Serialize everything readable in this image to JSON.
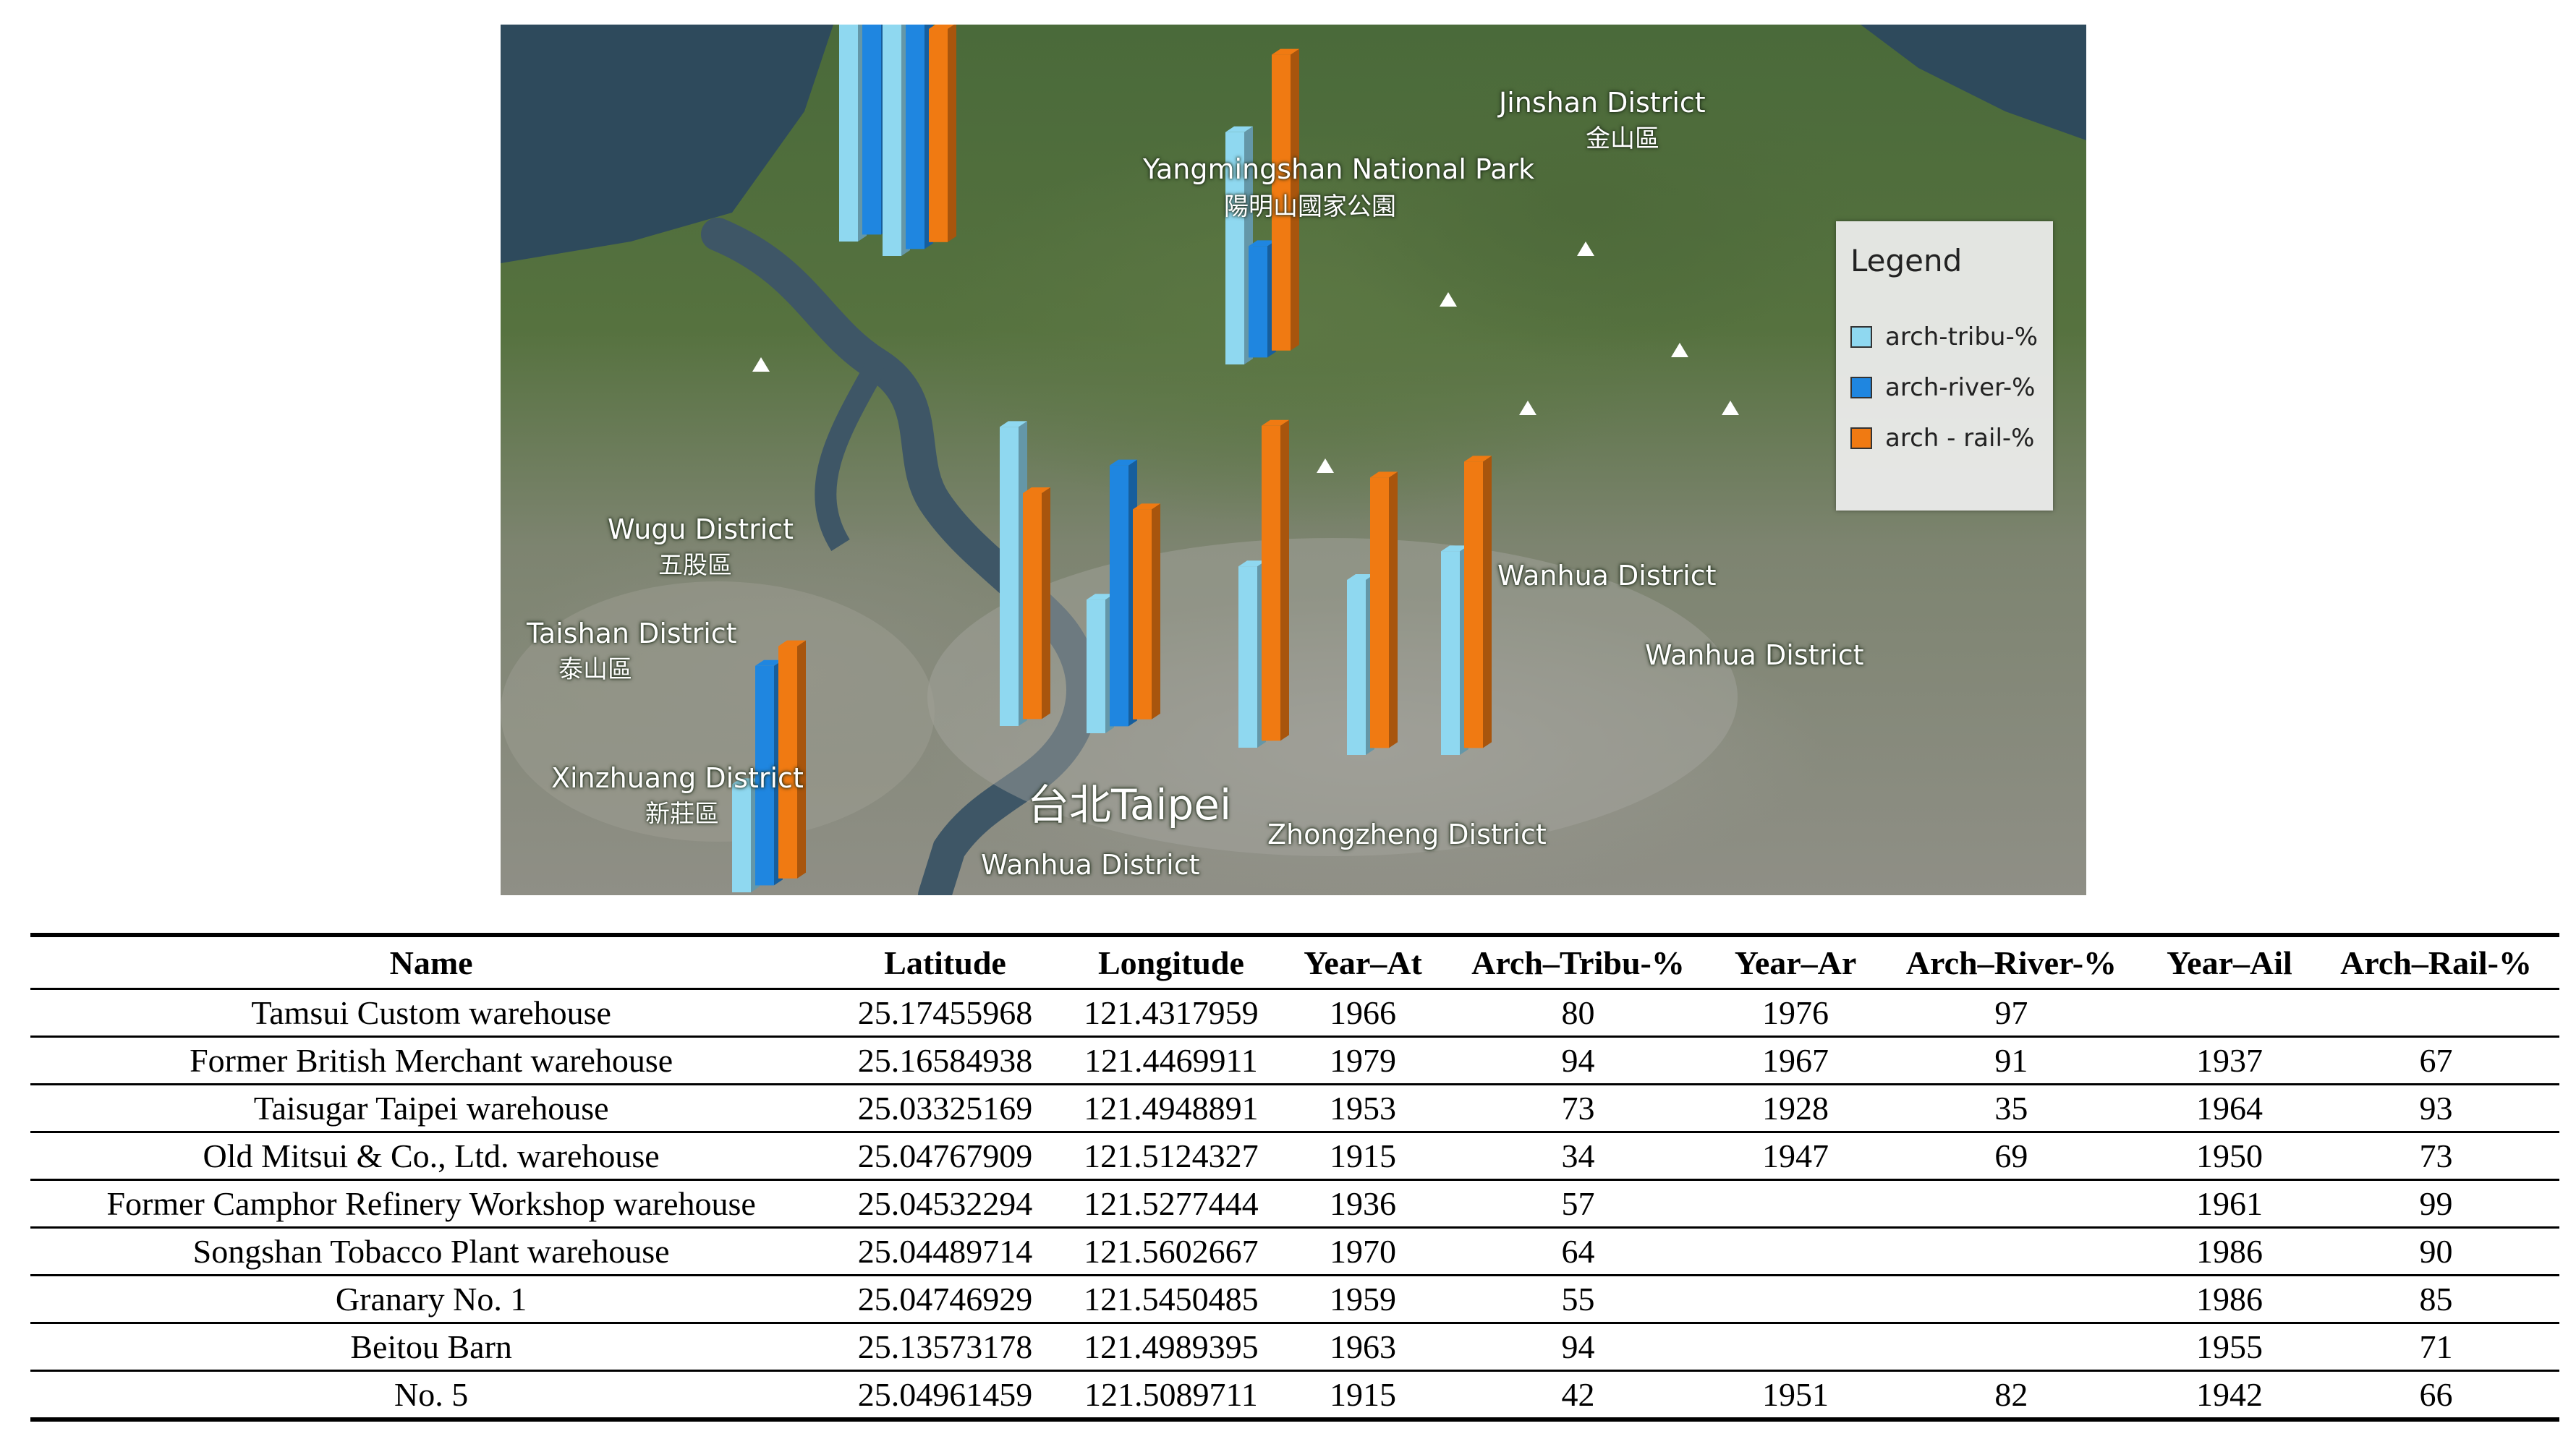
{
  "map": {
    "labels": {
      "jinshan": "Jinshan District",
      "jinshan_zh": "金山區",
      "yangmingshan": "Yangmingshan National Park",
      "yangmingshan_zh": "陽明山國家公園",
      "wugu": "Wugu District",
      "wugu_zh": "五股區",
      "taishan": "Taishan District",
      "taishan_zh": "泰山區",
      "xinzhuang": "Xinzhuang District",
      "xinzhuang_zh": "新莊區",
      "taipei": "台北Taipei",
      "wanhua_bottom": "Wanhua District",
      "zhongzheng": "Zhongzheng District",
      "wanhua_mid": "Wanhua District",
      "wanhua_right": "Wanhua District"
    },
    "legend": {
      "title": "Legend",
      "items": [
        {
          "label": "arch-tribu-%",
          "color": "#8fd8f0"
        },
        {
          "label": "arch-river-%",
          "color": "#1f86e0"
        },
        {
          "label": "arch - rail-%",
          "color": "#f07a12"
        }
      ]
    },
    "colors": {
      "tribu": "#8fd8f0",
      "river": "#1f86e0",
      "rail": "#f07a12"
    }
  },
  "table": {
    "headers": [
      "Name",
      "Latitude",
      "Longitude",
      "Year–At",
      "Arch–Tribu-%",
      "Year–Ar",
      "Arch–River-%",
      "Year–Ail",
      "Arch–Rail-%"
    ],
    "rows": [
      [
        "Tamsui Custom warehouse",
        "25.17455968",
        "121.4317959",
        "1966",
        "80",
        "1976",
        "97",
        "",
        ""
      ],
      [
        "Former British Merchant warehouse",
        "25.16584938",
        "121.4469911",
        "1979",
        "94",
        "1967",
        "91",
        "1937",
        "67"
      ],
      [
        "Taisugar Taipei warehouse",
        "25.03325169",
        "121.4948891",
        "1953",
        "73",
        "1928",
        "35",
        "1964",
        "93"
      ],
      [
        "Old Mitsui & Co., Ltd. warehouse",
        "25.04767909",
        "121.5124327",
        "1915",
        "34",
        "1947",
        "69",
        "1950",
        "73"
      ],
      [
        "Former Camphor Refinery Workshop warehouse",
        "25.04532294",
        "121.5277444",
        "1936",
        "57",
        "",
        "",
        "1961",
        "99"
      ],
      [
        "Songshan Tobacco Plant warehouse",
        "25.04489714",
        "121.5602667",
        "1970",
        "64",
        "",
        "",
        "1986",
        "90"
      ],
      [
        "Granary No. 1",
        "25.04746929",
        "121.5450485",
        "1959",
        "55",
        "",
        "",
        "1986",
        "85"
      ],
      [
        "Beitou Barn",
        "25.13573178",
        "121.4989395",
        "1963",
        "94",
        "",
        "",
        "1955",
        "71"
      ],
      [
        "No. 5",
        "25.04961459",
        "121.5089711",
        "1915",
        "42",
        "1951",
        "82",
        "1942",
        "66"
      ]
    ]
  }
}
